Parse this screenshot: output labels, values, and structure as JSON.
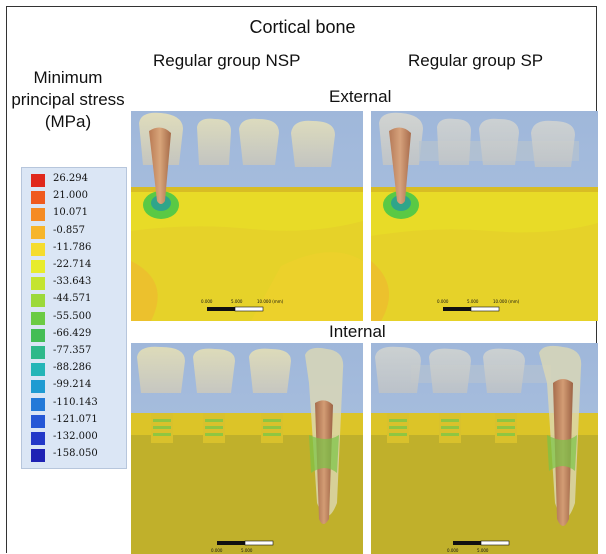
{
  "title": "Cortical bone",
  "columns": [
    "Regular group NSP",
    "Regular group SP"
  ],
  "rows": [
    "External",
    "Internal"
  ],
  "legend": {
    "title": "Minimum principal stress (MPa)",
    "values": [
      "26.294",
      "21.000",
      "10.071",
      "-0.857",
      "-11.786",
      "-22.714",
      "-33.643",
      "-44.571",
      "-55.500",
      "-66.429",
      "-77.357",
      "-88.286",
      "-99.214",
      "-110.143",
      "-121.071",
      "-132.000",
      "-158.050"
    ],
    "colors": [
      "#e0281c",
      "#ef5a1e",
      "#f58b23",
      "#f7b52a",
      "#f5dc2e",
      "#e8ec2c",
      "#c4e430",
      "#9cd93a",
      "#6bcb43",
      "#43bd54",
      "#2fb98a",
      "#25b5b7",
      "#1f9bd2",
      "#2379d8",
      "#2557d6",
      "#2338c8",
      "#1f22b4"
    ]
  },
  "panels": [
    {
      "id": "ext-nsp",
      "scale_bar": [
        "0.000",
        "5.000",
        "10.000 (mm)"
      ]
    },
    {
      "id": "ext-sp",
      "scale_bar": [
        "0.000",
        "5.000",
        "10.000 (mm)"
      ]
    },
    {
      "id": "int-nsp",
      "scale_bar": [
        "0.000",
        "5.000"
      ]
    },
    {
      "id": "int-sp",
      "scale_bar": [
        "0.000",
        "5.000"
      ]
    }
  ]
}
